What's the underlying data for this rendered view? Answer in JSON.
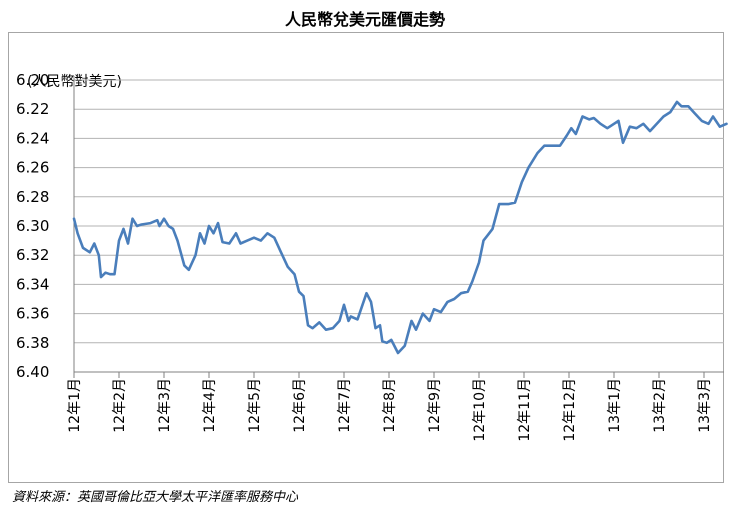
{
  "chart_data": {
    "type": "line",
    "title": "人民幣兌美元匯價走勢",
    "unit_label": "(人民幣對美元)",
    "source": "資料來源：英國哥倫比亞大學太平洋匯率服務中心",
    "y_ticks": [
      "6.20",
      "6.22",
      "6.24",
      "6.26",
      "6.28",
      "6.30",
      "6.32",
      "6.34",
      "6.36",
      "6.38",
      "6.40"
    ],
    "ylim": [
      6.4,
      6.2
    ],
    "y_inverted": true,
    "x_tick_labels": [
      "12年1月",
      "12年2月",
      "12年3月",
      "12年4月",
      "12年5月",
      "12年6月",
      "12年7月",
      "12年8月",
      "12年9月",
      "12年10月",
      "12年11月",
      "12年12月",
      "13年1月",
      "13年2月",
      "13年3月"
    ],
    "grid": "horizontal",
    "line_color": "#4a7ebb",
    "x_unit": "months since start of 12年1月",
    "series": [
      {
        "name": "",
        "x": [
          0,
          0.08,
          0.2,
          0.35,
          0.45,
          0.55,
          0.6,
          0.7,
          0.8,
          0.9,
          1.0,
          1.1,
          1.2,
          1.3,
          1.4,
          1.5,
          1.7,
          1.85,
          1.9,
          2.0,
          2.1,
          2.2,
          2.3,
          2.45,
          2.55,
          2.7,
          2.8,
          2.9,
          3.0,
          3.1,
          3.2,
          3.3,
          3.45,
          3.6,
          3.7,
          3.85,
          4.0,
          4.15,
          4.3,
          4.45,
          4.6,
          4.75,
          4.9,
          5.0,
          5.1,
          5.2,
          5.3,
          5.45,
          5.6,
          5.75,
          5.9,
          6.0,
          6.1,
          6.15,
          6.3,
          6.4,
          6.5,
          6.6,
          6.7,
          6.8,
          6.85,
          6.95,
          7.05,
          7.2,
          7.35,
          7.5,
          7.6,
          7.75,
          7.9,
          8.0,
          8.15,
          8.3,
          8.45,
          8.6,
          8.75,
          8.85,
          9.0,
          9.1,
          9.2,
          9.3,
          9.45,
          9.55,
          9.65,
          9.8,
          9.95,
          10.1,
          10.3,
          10.45,
          10.6,
          10.8,
          10.95,
          11.05,
          11.15,
          11.3,
          11.45,
          11.55,
          11.7,
          11.85,
          12.0,
          12.1,
          12.2,
          12.35,
          12.5,
          12.65,
          12.8,
          12.95,
          13.1,
          13.25,
          13.4,
          13.5,
          13.65,
          13.8,
          13.95,
          14.1,
          14.2,
          14.35,
          14.5
        ],
        "y": [
          6.295,
          6.305,
          6.315,
          6.318,
          6.312,
          6.32,
          6.335,
          6.332,
          6.333,
          6.333,
          6.31,
          6.302,
          6.312,
          6.295,
          6.3,
          6.299,
          6.298,
          6.296,
          6.3,
          6.295,
          6.3,
          6.302,
          6.31,
          6.327,
          6.33,
          6.32,
          6.305,
          6.312,
          6.3,
          6.305,
          6.298,
          6.311,
          6.312,
          6.305,
          6.312,
          6.31,
          6.308,
          6.31,
          6.305,
          6.308,
          6.318,
          6.328,
          6.333,
          6.345,
          6.348,
          6.368,
          6.37,
          6.366,
          6.371,
          6.37,
          6.365,
          6.354,
          6.365,
          6.362,
          6.364,
          6.355,
          6.346,
          6.352,
          6.37,
          6.368,
          6.379,
          6.38,
          6.378,
          6.387,
          6.382,
          6.365,
          6.371,
          6.36,
          6.365,
          6.357,
          6.359,
          6.352,
          6.35,
          6.346,
          6.345,
          6.338,
          6.325,
          6.31,
          6.306,
          6.302,
          6.285,
          6.285,
          6.285,
          6.284,
          6.27,
          6.26,
          6.25,
          6.245,
          6.245,
          6.245,
          6.238,
          6.233,
          6.237,
          6.225,
          6.227,
          6.226,
          6.23,
          6.233,
          6.23,
          6.228,
          6.243,
          6.232,
          6.233,
          6.23,
          6.235,
          6.23,
          6.225,
          6.222,
          6.215,
          6.218,
          6.218,
          6.223,
          6.228,
          6.23,
          6.225,
          6.232,
          6.23
        ]
      }
    ]
  }
}
